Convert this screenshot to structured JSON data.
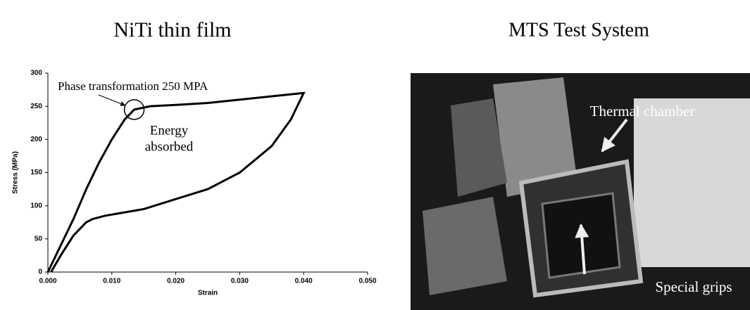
{
  "left_title": "NiTi thin film",
  "chart_data": {
    "type": "line",
    "x": [
      0,
      0.002,
      0.004,
      0.006,
      0.008,
      0.01,
      0.012,
      0.0135,
      0.016,
      0.02,
      0.025,
      0.03,
      0.035,
      0.04,
      0.038,
      0.035,
      0.03,
      0.025,
      0.02,
      0.015,
      0.012,
      0.009,
      0.007,
      0.006,
      0.004,
      0.002,
      0.0005
    ],
    "values": [
      0,
      40,
      80,
      125,
      165,
      200,
      230,
      245,
      250,
      252,
      255,
      260,
      265,
      270,
      230,
      190,
      150,
      125,
      110,
      95,
      90,
      85,
      80,
      75,
      55,
      25,
      0
    ],
    "color": "#000000",
    "xlabel": "Strain",
    "ylabel": "Stress (MPa)",
    "xlim": [
      0,
      0.05
    ],
    "ylim": [
      0,
      300
    ],
    "xticks": [
      {
        "value": 0,
        "label": "0.000"
      },
      {
        "value": 0.01,
        "label": "0.010"
      },
      {
        "value": 0.02,
        "label": "0.020"
      },
      {
        "value": 0.03,
        "label": "0.030"
      },
      {
        "value": 0.04,
        "label": "0.040"
      },
      {
        "value": 0.05,
        "label": "0.050"
      }
    ],
    "yticks": [
      0,
      50,
      100,
      150,
      200,
      250,
      300
    ],
    "annotations": [
      "Phase transformation 250 MPA",
      "Energy",
      "absorbed"
    ]
  },
  "photo": {
    "title": "MTS Test System",
    "labels": [
      "Thermal chamber",
      "Special grips"
    ]
  }
}
